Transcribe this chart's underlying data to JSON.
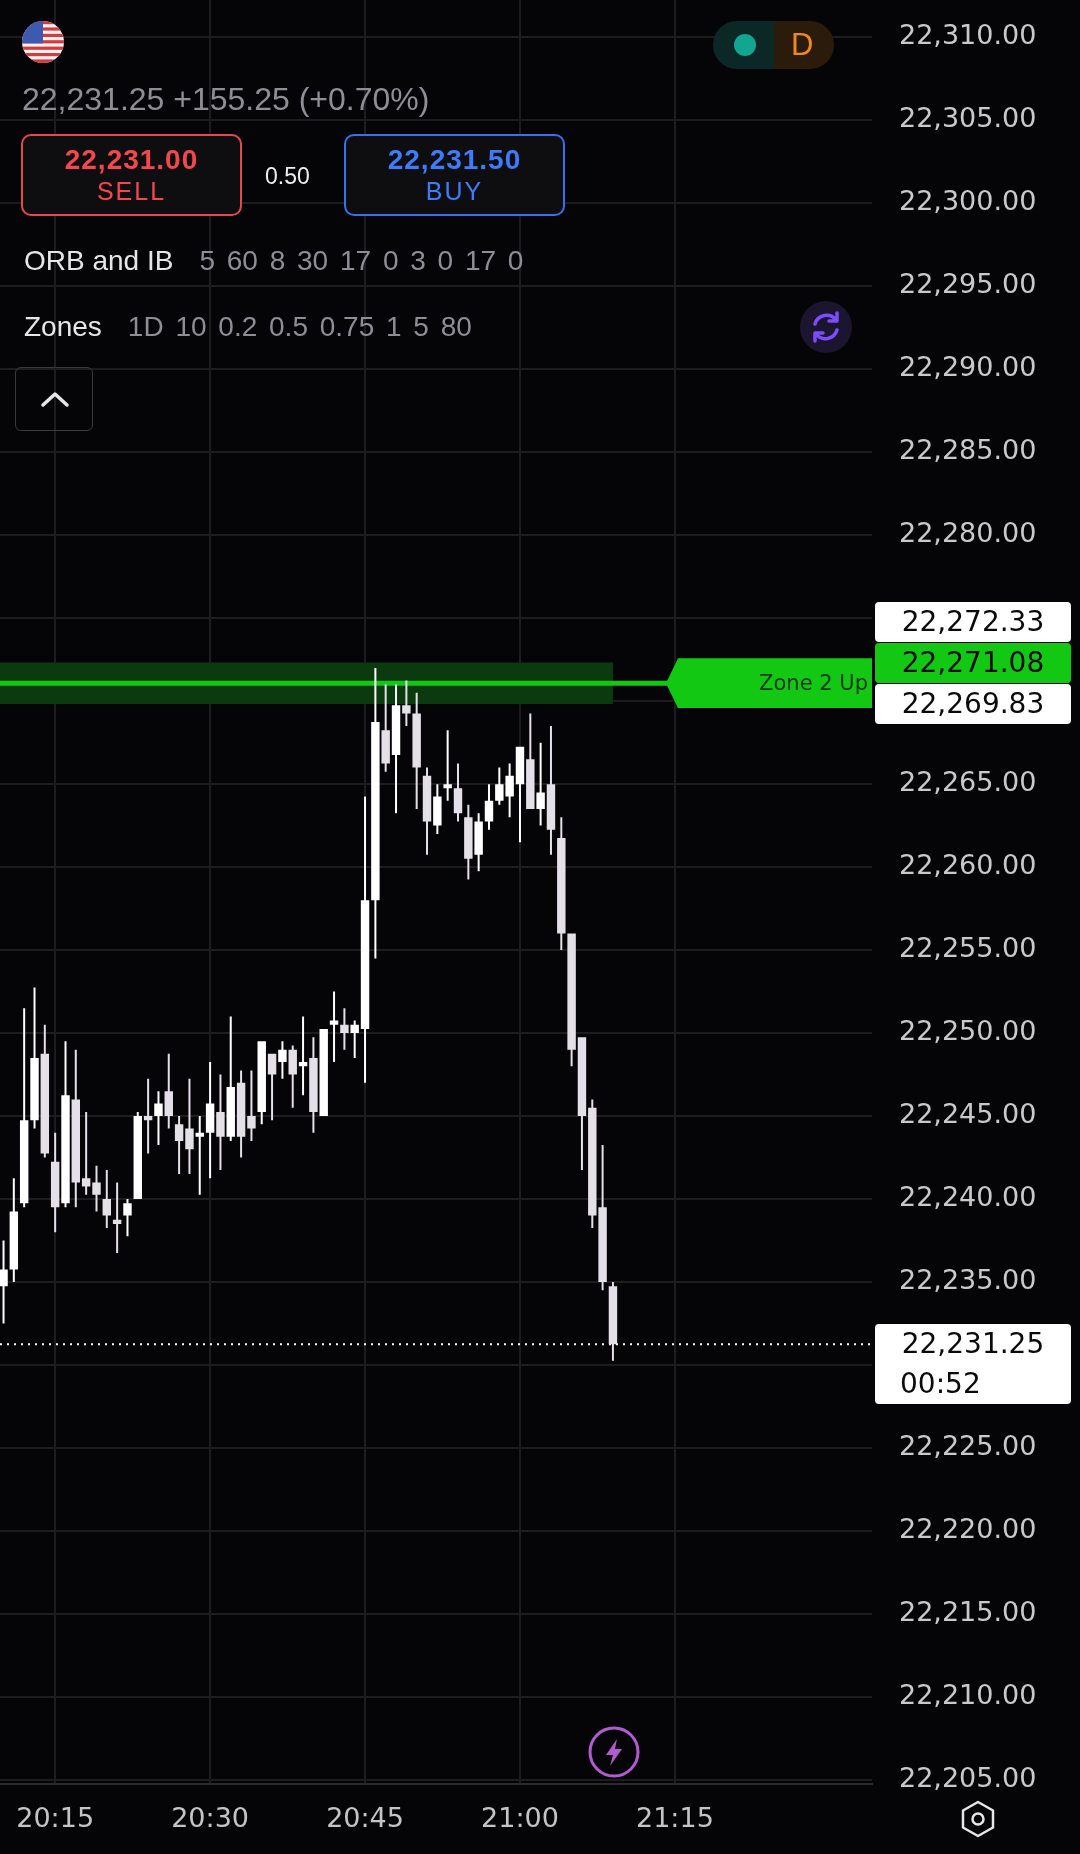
{
  "chart_data": {
    "type": "candlestick",
    "subtitle": "22,231.25 +155.25 (+0.70%)",
    "x": [
      20.1667,
      20.1833,
      20.2,
      20.2167,
      20.2333,
      20.25,
      20.2667,
      20.2833,
      20.3,
      20.3167,
      20.3333,
      20.35,
      20.3667,
      20.3833,
      20.4,
      20.4167,
      20.4333,
      20.45,
      20.4667,
      20.4833,
      20.5,
      20.5167,
      20.5333,
      20.55,
      20.5667,
      20.5833,
      20.6,
      20.6167,
      20.6333,
      20.65,
      20.6667,
      20.6833,
      20.7,
      20.7167,
      20.7333,
      20.75,
      20.7667,
      20.7833,
      20.8,
      20.8167,
      20.8333,
      20.85,
      20.8667,
      20.8833,
      20.9,
      20.9167,
      20.9333,
      20.95,
      20.9667,
      20.9833,
      21,
      21.0167,
      21.0333,
      21.05,
      21.0667,
      21.0833,
      21.1,
      21.1167,
      21.1333,
      21.15
    ],
    "ohlc": [
      [
        22234.75,
        22237.5,
        22232.5,
        22235.75
      ],
      [
        22235.75,
        22241.25,
        22235,
        22239.25
      ],
      [
        22239.75,
        22251.5,
        22239.5,
        22244.75
      ],
      [
        22244.75,
        22252.75,
        22244.25,
        22248.5
      ],
      [
        22248.75,
        22250.5,
        22242.5,
        22242.75
      ],
      [
        22242.25,
        22244,
        22238,
        22239.5
      ],
      [
        22239.75,
        22249.5,
        22239.5,
        22246.25
      ],
      [
        22246,
        22249,
        22239.5,
        22241
      ],
      [
        22241.25,
        22245.25,
        22240.25,
        22240.75
      ],
      [
        22241,
        22242,
        22239.25,
        22240.25
      ],
      [
        22240,
        22241.75,
        22238.25,
        22239
      ],
      [
        22238.75,
        22241,
        22236.75,
        22238.5
      ],
      [
        22239,
        22240,
        22237.75,
        22239.75
      ],
      [
        22240,
        22245.25,
        22240,
        22245
      ],
      [
        22245,
        22247.25,
        22242.75,
        22244.75
      ],
      [
        22245,
        22246.5,
        22243.25,
        22245.75
      ],
      [
        22246.5,
        22248.75,
        22244.25,
        22245
      ],
      [
        22244.5,
        22245,
        22241.5,
        22243.5
      ],
      [
        22244.25,
        22247.25,
        22241.5,
        22243
      ],
      [
        22243.75,
        22245,
        22240.25,
        22244
      ],
      [
        22244,
        22248.25,
        22241.25,
        22245.75
      ],
      [
        22245.25,
        22247.5,
        22241.75,
        22243.75
      ],
      [
        22243.75,
        22251,
        22243.5,
        22246.75
      ],
      [
        22247,
        22247.75,
        22242.5,
        22243.75
      ],
      [
        22245,
        22247.75,
        22243.5,
        22244.25
      ],
      [
        22245.25,
        22249.5,
        22244.5,
        22249.5
      ],
      [
        22248.75,
        22248.75,
        22244.75,
        22247.5
      ],
      [
        22248.25,
        22249.5,
        22247.25,
        22249
      ],
      [
        22249,
        22249.25,
        22245.5,
        22247.5
      ],
      [
        22248,
        22251,
        22246.25,
        22248.25
      ],
      [
        22248.5,
        22249.75,
        22244,
        22245.25
      ],
      [
        22245,
        22250.25,
        22245,
        22250.25
      ],
      [
        22250.5,
        22252.5,
        22248.25,
        22250.75
      ],
      [
        22250.5,
        22251.5,
        22249,
        22250
      ],
      [
        22250,
        22250.75,
        22248.5,
        22250.5
      ],
      [
        22250.25,
        22264.25,
        22247,
        22258
      ],
      [
        22258,
        22272,
        22254.5,
        22268.75
      ],
      [
        22268.25,
        22271,
        22265.75,
        22266.25
      ],
      [
        22266.75,
        22271,
        22263.25,
        22269.75
      ],
      [
        22269.75,
        22271.25,
        22268.5,
        22269.25
      ],
      [
        22269.25,
        22270.5,
        22263.5,
        22266
      ],
      [
        22265.5,
        22266,
        22260.75,
        22262.75
      ],
      [
        22262.5,
        22265,
        22262,
        22264.25
      ],
      [
        22264.75,
        22268.25,
        22264,
        22265
      ],
      [
        22264.75,
        22266.25,
        22262.75,
        22263.25
      ],
      [
        22263,
        22263.75,
        22259.25,
        22260.5
      ],
      [
        22260.75,
        22263.25,
        22259.75,
        22262.75
      ],
      [
        22262.75,
        22265,
        22262.25,
        22264
      ],
      [
        22264,
        22266,
        22263.75,
        22265
      ],
      [
        22264.25,
        22266.25,
        22263,
        22265.5
      ],
      [
        22265,
        22267.25,
        22261.5,
        22267.25
      ],
      [
        22266.5,
        22269.25,
        22263.5,
        22263.5
      ],
      [
        22263.5,
        22267.5,
        22262.5,
        22264.5
      ],
      [
        22265,
        22268.5,
        22260.75,
        22262.25
      ],
      [
        22261.75,
        22263,
        22255,
        22256
      ],
      [
        22256,
        22256,
        22248,
        22249
      ],
      [
        22249.75,
        22249.75,
        22241.75,
        22245
      ],
      [
        22245.5,
        22246,
        22238.25,
        22239
      ],
      [
        22239.5,
        22243.25,
        22234.5,
        22235
      ],
      [
        22234.75,
        22235,
        22230.25,
        22231.25
      ]
    ],
    "colors": [
      "#ffffff",
      "#ffffff",
      "#ffffff",
      "#ffffff",
      "#e4e0e8",
      "#e4e0e8",
      "#ffffff",
      "#e4e0e8",
      "#e4e0e8",
      "#e4e0e8",
      "#e4e0e8",
      "#e4e0e8",
      "#ffffff",
      "#ffffff",
      "#e4e0e8",
      "#ffffff",
      "#e4e0e8",
      "#e4e0e8",
      "#e4e0e8",
      "#ffffff",
      "#ffffff",
      "#e4e0e8",
      "#ffffff",
      "#e4e0e8",
      "#e4e0e8",
      "#ffffff",
      "#e4e0e8",
      "#ffffff",
      "#e4e0e8",
      "#ffffff",
      "#e4e0e8",
      "#ffffff",
      "#ffffff",
      "#e4e0e8",
      "#ffffff",
      "#ffffff",
      "#ffffff",
      "#e4e0e8",
      "#ffffff",
      "#e4e0e8",
      "#e4e0e8",
      "#e4e0e8",
      "#ffffff",
      "#ffffff",
      "#e4e0e8",
      "#e4e0e8",
      "#ffffff",
      "#ffffff",
      "#ffffff",
      "#ffffff",
      "#ffffff",
      "#e4e0e8",
      "#ffffff",
      "#e4e0e8",
      "#e4e0e8",
      "#e4e0e8",
      "#e4e0e8",
      "#e4e0e8",
      "#e4e0e8",
      "#e4e0e8"
    ],
    "xlim": [
      20.161,
      21.568
    ],
    "xticks": [
      {
        "value": 20.25,
        "label": "20:15"
      },
      {
        "value": 20.5,
        "label": "20:30"
      },
      {
        "value": 20.75,
        "label": "20:45"
      },
      {
        "value": 21,
        "label": "21:00"
      },
      {
        "value": 21.25,
        "label": "21:15"
      }
    ],
    "ylim": [
      22204.75,
      22312.25
    ],
    "yticks": [
      {
        "value": 22205,
        "label": "22,205.00"
      },
      {
        "value": 22210,
        "label": "22,210.00"
      },
      {
        "value": 22215,
        "label": "22,215.00"
      },
      {
        "value": 22220,
        "label": "22,220.00"
      },
      {
        "value": 22225,
        "label": "22,225.00"
      },
      {
        "value": 22230,
        "label": null
      },
      {
        "value": 22235,
        "label": "22,235.00"
      },
      {
        "value": 22240,
        "label": "22,240.00"
      },
      {
        "value": 22245,
        "label": "22,245.00"
      },
      {
        "value": 22250,
        "label": "22,250.00"
      },
      {
        "value": 22255,
        "label": "22,255.00"
      },
      {
        "value": 22260,
        "label": "22,260.00"
      },
      {
        "value": 22265,
        "label": "22,265.00"
      },
      {
        "value": 22270,
        "label": null
      },
      {
        "value": 22275,
        "label": null
      },
      {
        "value": 22280,
        "label": "22,280.00"
      },
      {
        "value": 22285,
        "label": "22,285.00"
      },
      {
        "value": 22290,
        "label": "22,290.00"
      },
      {
        "value": 22295,
        "label": "22,295.00"
      },
      {
        "value": 22300,
        "label": "22,300.00"
      },
      {
        "value": 22305,
        "label": "22,305.00"
      },
      {
        "value": 22310,
        "label": "22,310.00"
      }
    ],
    "grid": true,
    "bands": [
      {
        "axis": "y",
        "from": 22269.83,
        "to": 22272.33,
        "color": "#0b3a0e"
      }
    ],
    "ref_lines": [
      {
        "axis": "y",
        "value": 22271.08,
        "label": "Zone 2 Up",
        "color": "#12c812",
        "line_style": "solid"
      },
      {
        "axis": "y",
        "value": 22231.25,
        "color": "#ffffff",
        "line_style": "dotted"
      }
    ],
    "annotations": [
      "22,231.00",
      "SELL",
      "0.50",
      "22,231.50",
      "BUY",
      "ORB and IB",
      "5 60 8 30 17 0 3 0 17 0",
      "Zones",
      "1D 10 0.2 0.5 0.75 1 5 80",
      "D",
      "22,272.33",
      "22,271.08",
      "22,269.83",
      "22,231.25",
      "00:52"
    ]
  }
}
